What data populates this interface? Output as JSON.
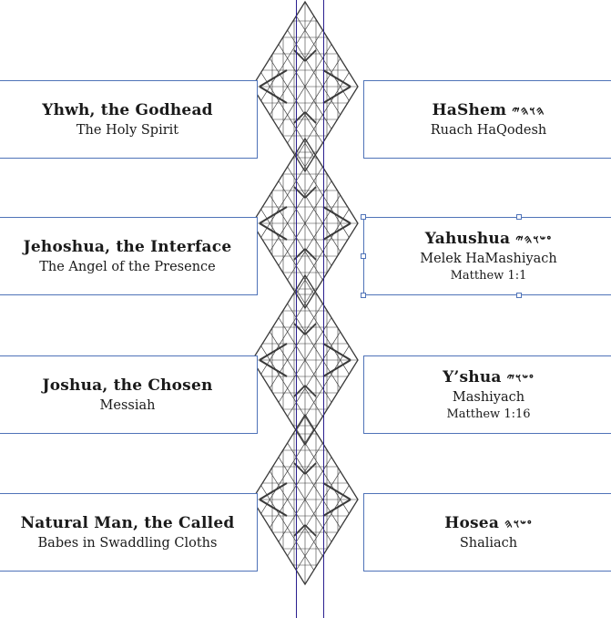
{
  "left_boxes": [
    {
      "title": "Yhwh, the Godhead",
      "subtitle": "The Holy Spirit"
    },
    {
      "title": "Jehoshua, the Interface",
      "subtitle": "The Angel of the Presence"
    },
    {
      "title": "Joshua, the Chosen",
      "subtitle": "Messiah"
    },
    {
      "title": "Natural Man, the Called",
      "subtitle": "Babes in Swaddling Cloths"
    }
  ],
  "right_boxes": [
    {
      "title": "HaShem",
      "hebrew": "𐤄𐤅𐤄𐤉",
      "subtitle": "Ruach HaQodesh",
      "reference": ""
    },
    {
      "title": "Yahushua",
      "hebrew": "𐤏𐤔𐤅𐤄𐤉",
      "subtitle": "Melek HaMashiyach",
      "reference": "Matthew 1:1"
    },
    {
      "title": "Y’shua",
      "hebrew": "𐤏𐤔𐤅𐤉",
      "subtitle": "Mashiyach",
      "reference": "Matthew 1:16"
    },
    {
      "title": "Hosea",
      "hebrew": "𐤏𐤔𐤅𐤄",
      "subtitle": "Shaliach",
      "reference": ""
    }
  ],
  "colors": {
    "box_border": "#4f73b8",
    "guide_line": "#2a1f8f",
    "lattice": "#3a3a3a"
  }
}
